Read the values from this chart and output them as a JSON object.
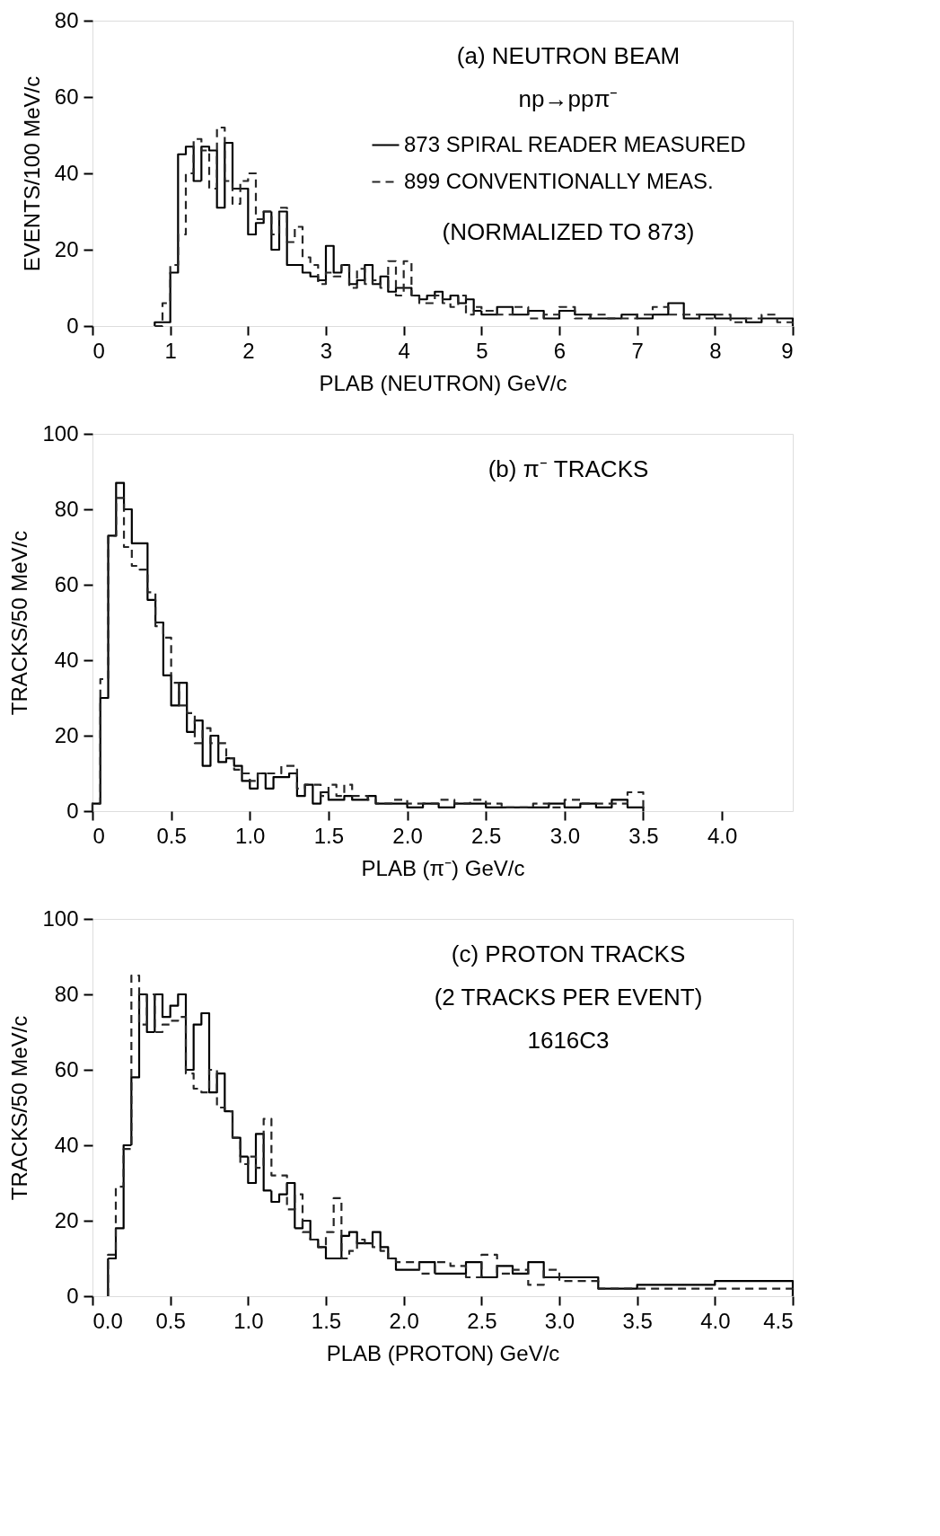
{
  "chart_data": [
    {
      "type": "histogram",
      "xlabel": "PLAB (NEUTRON) GeV/c",
      "ylabel": "EVENTS/100 MeV/c",
      "xlim": [
        0,
        9
      ],
      "xticks": [
        0,
        1,
        2,
        3,
        4,
        5,
        6,
        7,
        8,
        9
      ],
      "ylim": [
        0,
        80
      ],
      "yticks": [
        0,
        20,
        40,
        60,
        80
      ],
      "legend": "top right",
      "annotations": [
        "(a) NEUTRON BEAM",
        "np→ppπ⁻",
        "(NORMALIZED TO 873)"
      ],
      "bins": [
        0.8,
        0.9,
        1.0,
        1.1,
        1.2,
        1.3,
        1.4,
        1.5,
        1.6,
        1.7,
        1.8,
        1.9,
        2.0,
        2.1,
        2.2,
        2.3,
        2.4,
        2.5,
        2.6,
        2.7,
        2.8,
        2.9,
        3.0,
        3.1,
        3.2,
        3.3,
        3.4,
        3.5,
        3.6,
        3.7,
        3.8,
        3.9,
        4.0,
        4.1,
        4.2,
        4.3,
        4.4,
        4.5,
        4.6,
        4.7,
        4.8,
        4.9,
        5.0,
        5.2,
        5.4,
        5.6,
        5.8,
        6.0,
        6.2,
        6.4,
        6.6,
        6.8,
        7.0,
        7.2,
        7.4,
        7.6,
        7.8,
        8.0,
        8.2,
        8.4,
        8.6,
        8.8,
        9.0
      ],
      "series": [
        {
          "name": "873 SPIRAL READER MEASURED",
          "color": "#000000",
          "line_style": "solid",
          "values": [
            1,
            1,
            14,
            45,
            47,
            38,
            47,
            46,
            31,
            48,
            36,
            36,
            24,
            27,
            30,
            20,
            30,
            16,
            16,
            14,
            13,
            12,
            21,
            14,
            16,
            11,
            12,
            16,
            11,
            13,
            9,
            10,
            10,
            8,
            7,
            8,
            9,
            7,
            8,
            6,
            7,
            4,
            3,
            5,
            3,
            4,
            2,
            4,
            3,
            2,
            2,
            3,
            2,
            3,
            6,
            2,
            3,
            2,
            2,
            1,
            2,
            2
          ]
        },
        {
          "name": "899 CONVENTIONALLY MEAS.",
          "color": "#262626",
          "line_style": "dashed",
          "values": [
            0,
            6,
            16,
            24,
            40,
            49,
            46,
            36,
            52,
            38,
            32,
            38,
            40,
            28,
            30,
            24,
            31,
            22,
            26,
            18,
            16,
            11,
            14,
            13,
            16,
            10,
            15,
            11,
            12,
            10,
            17,
            8,
            17,
            8,
            6,
            6,
            8,
            6,
            5,
            8,
            3,
            5,
            4,
            3,
            5,
            2,
            3,
            5,
            2,
            3,
            2,
            2,
            3,
            5,
            3,
            3,
            2,
            3,
            1,
            2,
            3,
            1
          ]
        }
      ]
    },
    {
      "type": "histogram",
      "xlabel": "PLAB (π⁻) GeV/c",
      "ylabel": "TRACKS/50 MeV/c",
      "xlim": [
        0,
        4.45
      ],
      "xticks": [
        0,
        0.5,
        {
          "value": 1,
          "label": "1.0"
        },
        1.5,
        {
          "value": 2,
          "label": "2.0"
        },
        2.5,
        {
          "value": 3,
          "label": "3.0"
        },
        3.5,
        {
          "value": 4,
          "label": "4.0"
        }
      ],
      "ylim": [
        0,
        100
      ],
      "yticks": [
        0,
        20,
        40,
        60,
        80,
        100
      ],
      "annotations": [
        "(b) π⁻ TRACKS"
      ],
      "bins": [
        0,
        0.05,
        0.1,
        0.15,
        0.2,
        0.25,
        0.3,
        0.35,
        0.4,
        0.45,
        0.5,
        0.55,
        0.6,
        0.65,
        0.7,
        0.75,
        0.8,
        0.85,
        0.9,
        0.95,
        1.0,
        1.05,
        1.1,
        1.15,
        1.2,
        1.25,
        1.3,
        1.35,
        1.4,
        1.45,
        1.5,
        1.55,
        1.6,
        1.65,
        1.7,
        1.75,
        1.8,
        1.9,
        2.0,
        2.1,
        2.2,
        2.3,
        2.4,
        2.5,
        2.6,
        2.7,
        2.8,
        2.9,
        3.0,
        3.1,
        3.2,
        3.3,
        3.4,
        3.5
      ],
      "series": [
        {
          "color": "#000000",
          "line_style": "solid",
          "values": [
            2,
            30,
            73,
            87,
            80,
            71,
            71,
            56,
            50,
            36,
            28,
            34,
            21,
            24,
            12,
            20,
            13,
            14,
            12,
            8,
            6,
            10,
            6,
            9,
            9,
            10,
            4,
            7,
            2,
            5,
            3,
            3,
            4,
            3,
            3,
            4,
            2,
            2,
            1,
            2,
            1,
            2,
            2,
            1,
            1,
            1,
            1,
            2,
            1,
            2,
            1,
            3,
            1
          ]
        },
        {
          "color": "#262626",
          "line_style": "dashed",
          "values": [
            2,
            35,
            73,
            83,
            70,
            65,
            64,
            58,
            49,
            46,
            34,
            28,
            26,
            18,
            22,
            18,
            18,
            14,
            11,
            10,
            8,
            10,
            10,
            10,
            12,
            12,
            6,
            7,
            7,
            4,
            7,
            4,
            7,
            4,
            4,
            3,
            2,
            3,
            2,
            2,
            3,
            2,
            3,
            2,
            1,
            1,
            2,
            1,
            3,
            2,
            2,
            2,
            5
          ]
        }
      ]
    },
    {
      "type": "histogram",
      "xlabel": "PLAB (PROTON) GeV/c",
      "ylabel": "TRACKS/50 MeV/c",
      "xlim": [
        0,
        4.5
      ],
      "xticks": [
        {
          "value": 0,
          "label": "0.0"
        },
        0.5,
        {
          "value": 1,
          "label": "1.0"
        },
        1.5,
        {
          "value": 2,
          "label": "2.0"
        },
        2.5,
        {
          "value": 3,
          "label": "3.0"
        },
        3.5,
        {
          "value": 4,
          "label": "4.0"
        },
        4.5
      ],
      "ylim": [
        0,
        100
      ],
      "yticks": [
        0,
        20,
        40,
        60,
        80,
        100
      ],
      "annotations": [
        "(c) PROTON TRACKS",
        "(2 TRACKS PER EVENT)",
        "1616C3"
      ],
      "bins": [
        0.1,
        0.15,
        0.2,
        0.25,
        0.3,
        0.35,
        0.4,
        0.45,
        0.5,
        0.55,
        0.6,
        0.65,
        0.7,
        0.75,
        0.8,
        0.85,
        0.9,
        0.95,
        1.0,
        1.05,
        1.1,
        1.15,
        1.2,
        1.25,
        1.3,
        1.35,
        1.4,
        1.45,
        1.5,
        1.55,
        1.6,
        1.65,
        1.7,
        1.75,
        1.8,
        1.85,
        1.9,
        1.95,
        2.0,
        2.1,
        2.2,
        2.3,
        2.4,
        2.5,
        2.6,
        2.7,
        2.8,
        2.9,
        3.0,
        3.25,
        3.5,
        4.0,
        4.5
      ],
      "series": [
        {
          "color": "#000000",
          "line_style": "solid",
          "values": [
            10,
            18,
            40,
            58,
            80,
            70,
            80,
            74,
            77,
            80,
            60,
            72,
            75,
            54,
            59,
            49,
            42,
            37,
            30,
            43,
            28,
            25,
            27,
            30,
            18,
            20,
            15,
            13,
            10,
            10,
            16,
            17,
            14,
            14,
            17,
            13,
            10,
            7,
            7,
            9,
            6,
            6,
            9,
            5,
            8,
            6,
            9,
            5,
            5,
            2,
            3,
            4
          ]
        },
        {
          "color": "#262626",
          "line_style": "dashed",
          "values": [
            11,
            29,
            39,
            85,
            72,
            80,
            70,
            72,
            73,
            74,
            59,
            55,
            54,
            60,
            50,
            49,
            42,
            35,
            37,
            34,
            47,
            32,
            32,
            23,
            27,
            17,
            15,
            13,
            17,
            26,
            10,
            12,
            15,
            14,
            13,
            12,
            10,
            9,
            9,
            6,
            9,
            8,
            5,
            11,
            6,
            7,
            3,
            7,
            4,
            2,
            2,
            2
          ]
        }
      ]
    }
  ]
}
